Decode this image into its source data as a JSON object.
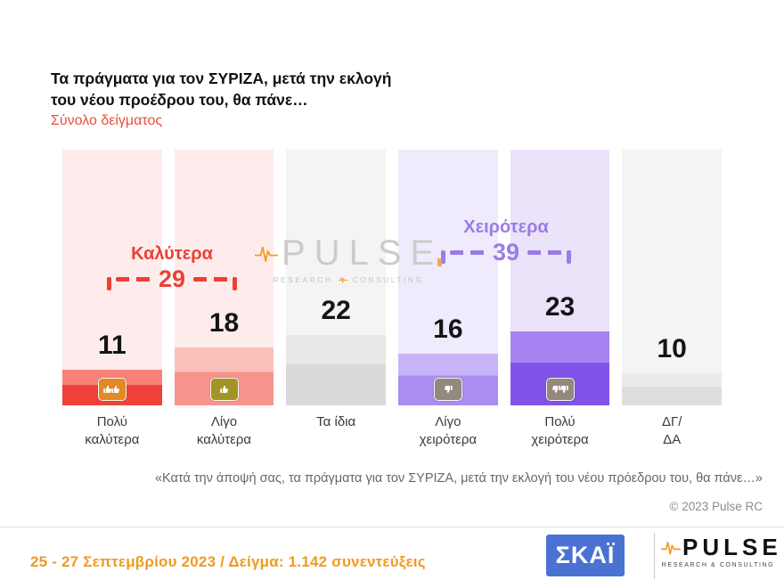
{
  "colors": {
    "orange": "#f29a1f",
    "skai-blue": "#4a72d3",
    "red": "#e8503a",
    "quote": "#70655c",
    "muted": "#8c8c8c",
    "label": "#3c3c3c",
    "number": "#141414"
  },
  "header": {
    "title_line1": "Τα πράγματα για τον ΣΥΡΙΖΑ, μετά την εκλογή",
    "title_line2": "του νέου προέδρου του, θα πάνε…",
    "subtitle": "Σύνολο δείγματος"
  },
  "chart_data": {
    "type": "bar",
    "title": "Τα πράγματα για τον ΣΥΡΙΖΑ, μετά την εκλογή του νέου προέδρου του, θα πάνε…",
    "subtitle": "Σύνολο δείγματος",
    "categories": [
      "Πολύ καλύτερα",
      "Λίγο καλύτερα",
      "Τα ίδια",
      "Λίγο χειρότερα",
      "Πολύ χειρότερα",
      "ΔΓ/ΔΑ"
    ],
    "values": [
      11,
      18,
      22,
      16,
      23,
      10
    ],
    "ylim": [
      0,
      80
    ],
    "grid": false,
    "data_labels": true,
    "groups": [
      {
        "label": "Καλύτερα",
        "value": 29,
        "color": "#ee3f35",
        "spans": [
          0,
          1
        ]
      },
      {
        "label": "Χειρότερα",
        "value": 39,
        "color": "#9a7ce6",
        "spans": [
          3,
          4
        ]
      }
    ],
    "bars": [
      {
        "line1": "Πολύ",
        "line2": "καλύτερα",
        "color": "#f0423a",
        "color_light": "#f8837b",
        "bg": "#fdeceb",
        "icon": "thumbs-up-double-icon",
        "icon_bg": "#e28a27"
      },
      {
        "line1": "Λίγο",
        "line2": "καλύτερα",
        "color": "#f7948c",
        "color_light": "#fbc0ba",
        "bg": "#fdeceb",
        "icon": "thumb-up-icon",
        "icon_bg": "#a39427"
      },
      {
        "line1": "Τα ίδια",
        "line2": "",
        "color": "#d9d9d9",
        "color_light": "#e8e8e8",
        "bg": "#f4f4f4",
        "icon": null,
        "icon_bg": null
      },
      {
        "line1": "Λίγο",
        "line2": "χειρότερα",
        "color": "#ab8cf0",
        "color_light": "#c7b4f6",
        "bg": "#efeafc",
        "icon": "thumb-down-icon",
        "icon_bg": "#94897d"
      },
      {
        "line1": "Πολύ",
        "line2": "χειρότερα",
        "color": "#8153e8",
        "color_light": "#a583f2",
        "bg": "#eae3fa",
        "icon": "thumbs-down-double-icon",
        "icon_bg": "#94897d"
      },
      {
        "line1": "ΔΓ/",
        "line2": "ΔΑ",
        "color": "#dedede",
        "color_light": "#eaeaea",
        "bg": "#f4f4f4",
        "icon": null,
        "icon_bg": null
      }
    ]
  },
  "watermark": {
    "brand": "PULSE",
    "tag_left": "RESEARCH",
    "tag_right": "CONSULTING"
  },
  "quote": "«Κατά την άποψή σας, τα πράγματα για τον ΣΥΡΙΖΑ, μετά την εκλογή του νέου πρόεδρου του, θα πάνε…»",
  "copyright": "© 2023 Pulse RC",
  "footer": {
    "date_text": "25 - 27  Σεπτεμβρίου  2023  /  Δείγμα:  1.142 συνεντεύξεις",
    "skai_label": "ΣΚΑΪ",
    "pulse_brand": "PULSE",
    "pulse_tagline": "RESEARCH & CONSULTING"
  }
}
